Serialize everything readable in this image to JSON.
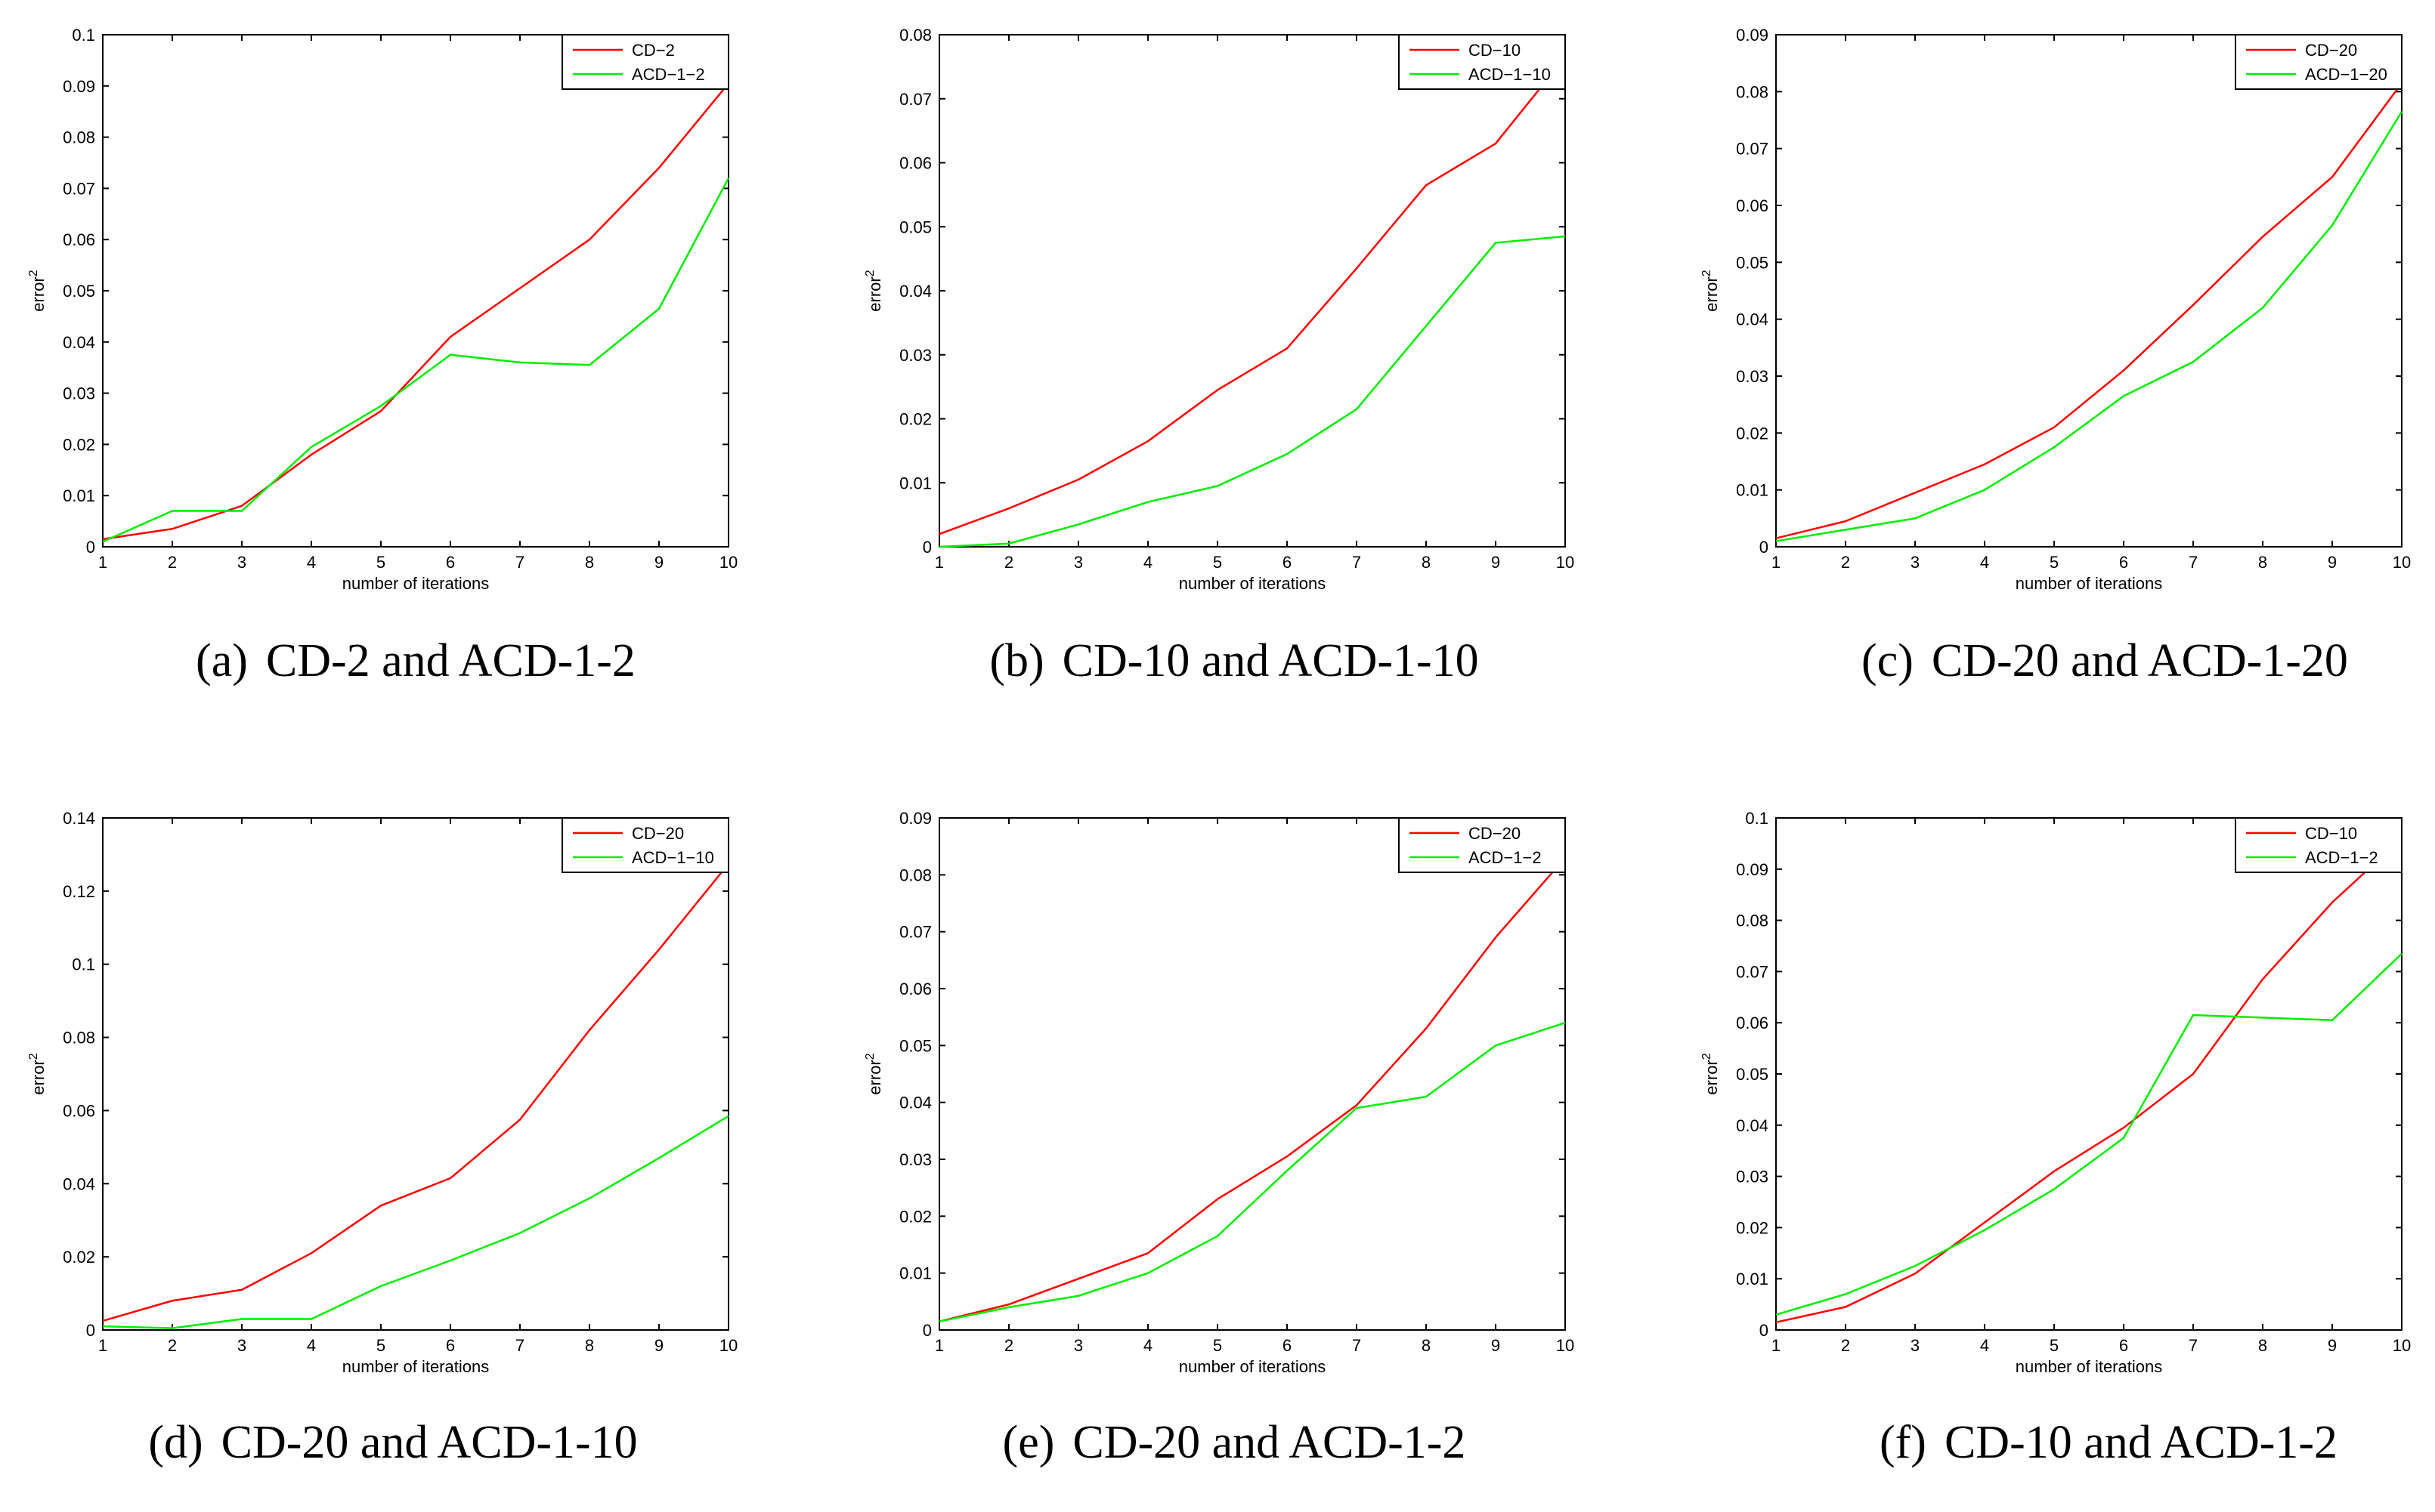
{
  "figure": {
    "colors": {
      "red": "#ff0000",
      "green": "#00ee00",
      "axis": "#000000"
    }
  },
  "chart_data": [
    {
      "type": "line",
      "caption": {
        "label": "(a)",
        "text": "CD-2 and ACD-1-2"
      },
      "xlabel": "number of iterations",
      "ylabel": "error",
      "ylabel_sup": "2",
      "x": [
        1,
        2,
        3,
        4,
        5,
        6,
        7,
        8,
        9,
        10
      ],
      "xlim": [
        1,
        10
      ],
      "ylim": [
        0,
        0.1
      ],
      "yticks": [
        0,
        0.01,
        0.02,
        0.03,
        0.04,
        0.05,
        0.06,
        0.07,
        0.08,
        0.09,
        0.1
      ],
      "ytick_labels": [
        "0",
        "0.01",
        "0.02",
        "0.03",
        "0.04",
        "0.05",
        "0.06",
        "0.07",
        "0.08",
        "0.09",
        "0.1"
      ],
      "legend_position": "top-right",
      "series": [
        {
          "name": "CD−2",
          "color": "#ff0000",
          "values": [
            0.0015,
            0.0035,
            0.008,
            0.018,
            0.0265,
            0.041,
            0.0505,
            0.06,
            0.074,
            0.0905
          ]
        },
        {
          "name": "ACD−1−2",
          "color": "#00ee00",
          "values": [
            0.001,
            0.007,
            0.007,
            0.0195,
            0.0275,
            0.0375,
            0.036,
            0.0355,
            0.0465,
            0.072
          ]
        }
      ]
    },
    {
      "type": "line",
      "caption": {
        "label": "(b)",
        "text": "CD-10 and ACD-1-10"
      },
      "xlabel": "number of iterations",
      "ylabel": "error",
      "ylabel_sup": "2",
      "x": [
        1,
        2,
        3,
        4,
        5,
        6,
        7,
        8,
        9,
        10
      ],
      "xlim": [
        1,
        10
      ],
      "ylim": [
        0,
        0.08
      ],
      "yticks": [
        0,
        0.01,
        0.02,
        0.03,
        0.04,
        0.05,
        0.06,
        0.07,
        0.08
      ],
      "ytick_labels": [
        "0",
        "0.01",
        "0.02",
        "0.03",
        "0.04",
        "0.05",
        "0.06",
        "0.07",
        "0.08"
      ],
      "legend_position": "top-right",
      "series": [
        {
          "name": "CD−10",
          "color": "#ff0000",
          "values": [
            0.002,
            0.006,
            0.0105,
            0.0165,
            0.0245,
            0.031,
            0.0435,
            0.0565,
            0.063,
            0.0765
          ]
        },
        {
          "name": "ACD−1−10",
          "color": "#00ee00",
          "values": [
            0.0,
            0.0005,
            0.0035,
            0.007,
            0.0095,
            0.0145,
            0.0215,
            0.0345,
            0.0475,
            0.0485
          ]
        }
      ]
    },
    {
      "type": "line",
      "caption": {
        "label": "(c)",
        "text": "CD-20 and ACD-1-20"
      },
      "xlabel": "number of iterations",
      "ylabel": "error",
      "ylabel_sup": "2",
      "x": [
        1,
        2,
        3,
        4,
        5,
        6,
        7,
        8,
        9,
        10
      ],
      "xlim": [
        1,
        10
      ],
      "ylim": [
        0,
        0.09
      ],
      "yticks": [
        0,
        0.01,
        0.02,
        0.03,
        0.04,
        0.05,
        0.06,
        0.07,
        0.08,
        0.09
      ],
      "ytick_labels": [
        "0",
        "0.01",
        "0.02",
        "0.03",
        "0.04",
        "0.05",
        "0.06",
        "0.07",
        "0.08",
        "0.09"
      ],
      "legend_position": "top-right",
      "series": [
        {
          "name": "CD−20",
          "color": "#ff0000",
          "values": [
            0.0015,
            0.0045,
            0.0095,
            0.0145,
            0.021,
            0.031,
            0.0425,
            0.0545,
            0.065,
            0.0815
          ]
        },
        {
          "name": "ACD−1−20",
          "color": "#00ee00",
          "values": [
            0.001,
            0.003,
            0.005,
            0.01,
            0.0175,
            0.0265,
            0.0325,
            0.042,
            0.0565,
            0.0765
          ]
        }
      ]
    },
    {
      "type": "line",
      "caption": {
        "label": "(d)",
        "text": "CD-20 and ACD-1-10"
      },
      "xlabel": "number of iterations",
      "ylabel": "error",
      "ylabel_sup": "2",
      "x": [
        1,
        2,
        3,
        4,
        5,
        6,
        7,
        8,
        9,
        10
      ],
      "xlim": [
        1,
        10
      ],
      "ylim": [
        0,
        0.14
      ],
      "yticks": [
        0,
        0.02,
        0.04,
        0.06,
        0.08,
        0.1,
        0.12,
        0.14
      ],
      "ytick_labels": [
        "0",
        "0.02",
        "0.04",
        "0.06",
        "0.08",
        "0.1",
        "0.12",
        "0.14"
      ],
      "legend_position": "top-right",
      "series": [
        {
          "name": "CD−20",
          "color": "#ff0000",
          "values": [
            0.0025,
            0.008,
            0.011,
            0.021,
            0.034,
            0.0415,
            0.0575,
            0.082,
            0.104,
            0.1275
          ]
        },
        {
          "name": "ACD−1−10",
          "color": "#00ee00",
          "values": [
            0.001,
            0.0005,
            0.003,
            0.003,
            0.012,
            0.019,
            0.0265,
            0.036,
            0.047,
            0.0585
          ]
        }
      ]
    },
    {
      "type": "line",
      "caption": {
        "label": "(e)",
        "text": "CD-20 and ACD-1-2"
      },
      "xlabel": "number of iterations",
      "ylabel": "error",
      "ylabel_sup": "2",
      "x": [
        1,
        2,
        3,
        4,
        5,
        6,
        7,
        8,
        9,
        10
      ],
      "xlim": [
        1,
        10
      ],
      "ylim": [
        0,
        0.09
      ],
      "yticks": [
        0,
        0.01,
        0.02,
        0.03,
        0.04,
        0.05,
        0.06,
        0.07,
        0.08,
        0.09
      ],
      "ytick_labels": [
        "0",
        "0.01",
        "0.02",
        "0.03",
        "0.04",
        "0.05",
        "0.06",
        "0.07",
        "0.08",
        "0.09"
      ],
      "legend_position": "top-right",
      "series": [
        {
          "name": "CD−20",
          "color": "#ff0000",
          "values": [
            0.0015,
            0.0045,
            0.009,
            0.0135,
            0.023,
            0.0305,
            0.0395,
            0.053,
            0.069,
            0.083
          ]
        },
        {
          "name": "ACD−1−2",
          "color": "#00ee00",
          "values": [
            0.0015,
            0.004,
            0.006,
            0.01,
            0.0165,
            0.028,
            0.039,
            0.041,
            0.05,
            0.054
          ]
        }
      ]
    },
    {
      "type": "line",
      "caption": {
        "label": "(f)",
        "text": "CD-10 and ACD-1-2"
      },
      "xlabel": "number of iterations",
      "ylabel": "error",
      "ylabel_sup": "2",
      "x": [
        1,
        2,
        3,
        4,
        5,
        6,
        7,
        8,
        9,
        10
      ],
      "xlim": [
        1,
        10
      ],
      "ylim": [
        0,
        0.1
      ],
      "yticks": [
        0,
        0.01,
        0.02,
        0.03,
        0.04,
        0.05,
        0.06,
        0.07,
        0.08,
        0.09,
        0.1
      ],
      "ytick_labels": [
        "0",
        "0.01",
        "0.02",
        "0.03",
        "0.04",
        "0.05",
        "0.06",
        "0.07",
        "0.08",
        "0.09",
        "0.1"
      ],
      "legend_position": "top-right",
      "series": [
        {
          "name": "CD−10",
          "color": "#ff0000",
          "values": [
            0.0015,
            0.0045,
            0.011,
            0.021,
            0.031,
            0.0395,
            0.05,
            0.0685,
            0.0835,
            0.096
          ]
        },
        {
          "name": "ACD−1−2",
          "color": "#00ee00",
          "values": [
            0.003,
            0.007,
            0.0125,
            0.0195,
            0.0275,
            0.0375,
            0.0615,
            0.061,
            0.0605,
            0.0735
          ]
        }
      ]
    }
  ]
}
